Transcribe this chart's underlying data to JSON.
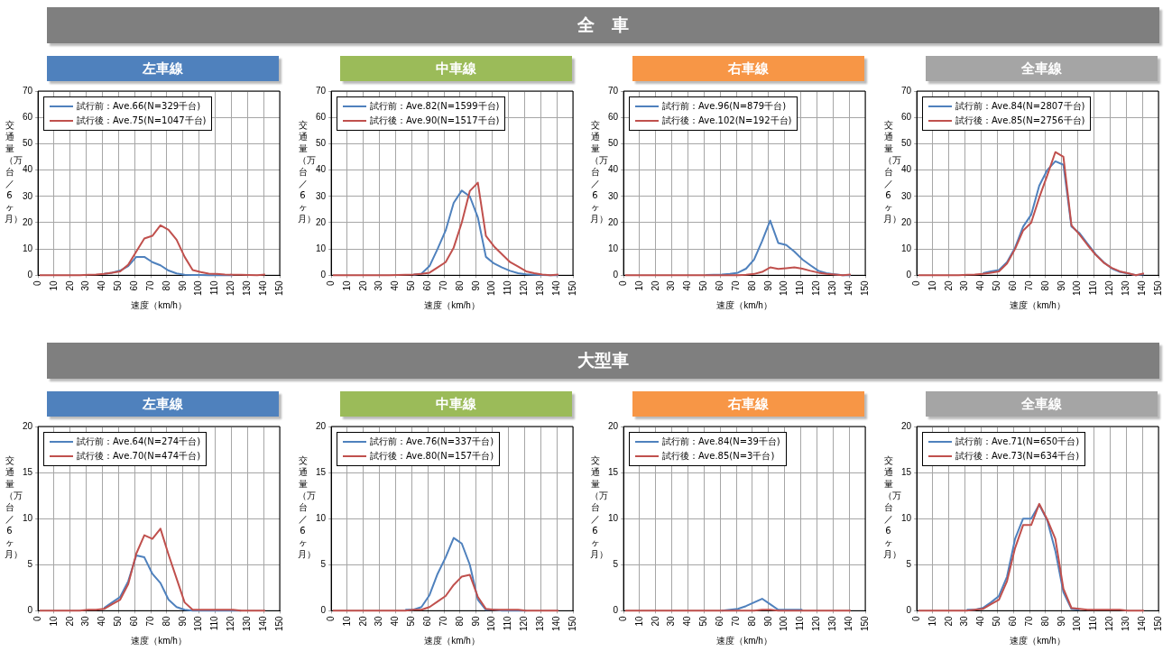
{
  "chart_data": [
    {
      "type": "other",
      "title": "全　車"
    },
    {
      "type": "line",
      "title": "左車線",
      "xlabel": "速度（km/h）",
      "ylabel": "交通量（万台／6ヶ月）",
      "legend": "top left",
      "grid": true,
      "marker": "none",
      "xlim": [
        0,
        150
      ],
      "xticks": [
        0,
        10,
        20,
        30,
        40,
        50,
        60,
        70,
        80,
        90,
        100,
        110,
        120,
        130,
        140,
        150
      ],
      "ylim": [
        0,
        70
      ],
      "yticks": [
        0,
        10,
        20,
        30,
        40,
        50,
        60,
        70
      ],
      "x": [
        1,
        6,
        11,
        16,
        21,
        26,
        31,
        36,
        41,
        46,
        51,
        56,
        61,
        66,
        71,
        76,
        81,
        86,
        91,
        96,
        101,
        106,
        111,
        116,
        121,
        126,
        131,
        136,
        141
      ],
      "series": [
        {
          "name": "試行前：Ave.66(N=329千台)",
          "color": "#4f81bd",
          "values": [
            null,
            null,
            null,
            null,
            null,
            null,
            null,
            null,
            0.5,
            1,
            1.8,
            3.5,
            7,
            7,
            5,
            3.8,
            1.8,
            0.7,
            0.2,
            0.1,
            0.1,
            0,
            0,
            0,
            0,
            null,
            null,
            null,
            null
          ]
        },
        {
          "name": "試行後：Ave.75(N=1047千台)",
          "color": "#c0504d",
          "values": [
            0,
            0,
            0,
            0,
            0,
            0,
            0.2,
            0.3,
            0.5,
            1,
            1.5,
            4,
            9,
            14,
            15,
            19,
            17.3,
            13.5,
            7,
            2,
            1.2,
            0.6,
            0.5,
            0.3,
            0.2,
            0.2,
            0.1,
            0,
            0.3
          ]
        }
      ]
    },
    {
      "type": "line",
      "title": "中車線",
      "xlabel": "速度（km/h）",
      "ylabel": "交通量（万台／6ヶ月）",
      "legend": "top left",
      "grid": true,
      "marker": "none",
      "xlim": [
        0,
        150
      ],
      "xticks": [
        0,
        10,
        20,
        30,
        40,
        50,
        60,
        70,
        80,
        90,
        100,
        110,
        120,
        130,
        140,
        150
      ],
      "ylim": [
        0,
        70
      ],
      "yticks": [
        0,
        10,
        20,
        30,
        40,
        50,
        60,
        70
      ],
      "x": [
        1,
        6,
        11,
        16,
        21,
        26,
        31,
        36,
        41,
        46,
        51,
        56,
        61,
        66,
        71,
        76,
        81,
        86,
        91,
        96,
        101,
        106,
        111,
        116,
        121,
        126,
        131,
        136,
        141
      ],
      "series": [
        {
          "name": "試行前：Ave.82(N=1599千台)",
          "color": "#4f81bd",
          "values": [
            null,
            null,
            null,
            null,
            null,
            null,
            null,
            null,
            null,
            null,
            0.2,
            0.6,
            3.5,
            10,
            17,
            27.5,
            32.2,
            30,
            22,
            7,
            4.5,
            3,
            1.7,
            0.8,
            0.4,
            0.2,
            0.1,
            0,
            0
          ]
        },
        {
          "name": "試行後：Ave.90(N=1517千台)",
          "color": "#c0504d",
          "values": [
            0,
            0,
            0,
            0,
            0,
            0,
            0,
            0,
            0.1,
            0.2,
            0.3,
            0.5,
            1,
            3,
            5,
            10.5,
            20,
            32,
            35.2,
            15,
            11,
            8,
            5,
            3.3,
            1.5,
            0.8,
            0.3,
            0,
            0.3
          ]
        }
      ]
    },
    {
      "type": "line",
      "title": "右車線",
      "xlabel": "速度（km/h）",
      "ylabel": "交通量（万台／6ヶ月）",
      "legend": "top left",
      "grid": true,
      "marker": "none",
      "xlim": [
        0,
        150
      ],
      "xticks": [
        0,
        10,
        20,
        30,
        40,
        50,
        60,
        70,
        80,
        90,
        100,
        110,
        120,
        130,
        140,
        150
      ],
      "ylim": [
        0,
        70
      ],
      "yticks": [
        0,
        10,
        20,
        30,
        40,
        50,
        60,
        70
      ],
      "x": [
        1,
        6,
        11,
        16,
        21,
        26,
        31,
        36,
        41,
        46,
        51,
        56,
        61,
        66,
        71,
        76,
        81,
        86,
        91,
        96,
        101,
        106,
        111,
        116,
        121,
        126,
        131,
        136,
        141
      ],
      "series": [
        {
          "name": "試行前：Ave.96(N=879千台)",
          "color": "#4f81bd",
          "values": [
            null,
            null,
            null,
            null,
            null,
            null,
            null,
            null,
            null,
            null,
            0.1,
            0.2,
            0.3,
            0.5,
            1,
            2.5,
            6,
            13,
            20.8,
            12.3,
            11.5,
            9,
            6,
            3.8,
            1.7,
            0.8,
            0.4,
            0,
            0
          ]
        },
        {
          "name": "試行後：Ave.102(N=192千台)",
          "color": "#c0504d",
          "values": [
            0,
            0,
            0,
            0,
            0,
            0,
            0,
            0,
            0,
            0,
            0,
            0,
            0,
            0,
            0,
            0.2,
            0.5,
            1.3,
            3,
            2.4,
            2.7,
            3,
            2.5,
            1.7,
            1,
            0.5,
            0.3,
            0,
            0.3
          ]
        }
      ]
    },
    {
      "type": "line",
      "title": "全車線",
      "xlabel": "速度（km/h）",
      "ylabel": "交通量（万台／6ヶ月）",
      "legend": "top left",
      "grid": true,
      "marker": "none",
      "xlim": [
        0,
        150
      ],
      "xticks": [
        0,
        10,
        20,
        30,
        40,
        50,
        60,
        70,
        80,
        90,
        100,
        110,
        120,
        130,
        140,
        150
      ],
      "ylim": [
        0,
        70
      ],
      "yticks": [
        0,
        10,
        20,
        30,
        40,
        50,
        60,
        70
      ],
      "x": [
        1,
        6,
        11,
        16,
        21,
        26,
        31,
        36,
        41,
        46,
        51,
        56,
        61,
        66,
        71,
        76,
        81,
        86,
        91,
        96,
        101,
        106,
        111,
        116,
        121,
        126,
        131,
        136,
        141
      ],
      "series": [
        {
          "name": "試行前：Ave.84(N=2807千台)",
          "color": "#4f81bd",
          "values": [
            null,
            null,
            null,
            null,
            null,
            null,
            null,
            null,
            0.8,
            1.5,
            2,
            5,
            10.5,
            18.5,
            23,
            34,
            40,
            43.3,
            42,
            18.5,
            16,
            12,
            8,
            5,
            2.6,
            1.3,
            0.7,
            0,
            0.4
          ]
        },
        {
          "name": "試行後：Ave.85(N=2756千台)",
          "color": "#c0504d",
          "values": [
            0,
            0,
            0,
            0,
            0,
            0,
            0.2,
            0.3,
            0.5,
            1,
            1.5,
            4.5,
            10,
            17,
            20,
            29.5,
            38,
            46.8,
            45,
            19,
            15.5,
            11.5,
            7.8,
            4.8,
            2.8,
            1.5,
            0.8,
            0,
            0.7
          ]
        }
      ]
    },
    {
      "type": "other",
      "title": "大型車"
    },
    {
      "type": "line",
      "title": "左車線",
      "xlabel": "速度（km/h）",
      "ylabel": "交通量（万台／6ヶ月）",
      "legend": "top left",
      "grid": true,
      "marker": "none",
      "xlim": [
        0,
        150
      ],
      "xticks": [
        0,
        10,
        20,
        30,
        40,
        50,
        60,
        70,
        80,
        90,
        100,
        110,
        120,
        130,
        140,
        150
      ],
      "ylim": [
        0,
        20
      ],
      "yticks": [
        0,
        5,
        10,
        15,
        20
      ],
      "x": [
        1,
        6,
        11,
        16,
        21,
        26,
        31,
        36,
        41,
        46,
        51,
        56,
        61,
        66,
        71,
        76,
        81,
        86,
        91,
        96,
        101,
        106,
        111,
        116,
        121,
        126,
        131,
        136,
        141
      ],
      "series": [
        {
          "name": "試行前：Ave.64(N=274千台)",
          "color": "#4f81bd",
          "values": [
            null,
            null,
            null,
            null,
            null,
            null,
            null,
            null,
            0.3,
            0.9,
            1.5,
            3.2,
            6,
            5.8,
            4,
            3,
            1.2,
            0.4,
            0.1,
            0,
            0,
            0,
            0,
            0,
            0,
            0,
            null,
            null,
            null
          ]
        },
        {
          "name": "試行後：Ave.70(N=474千台)",
          "color": "#c0504d",
          "values": [
            0,
            0,
            0,
            0,
            0,
            0,
            0.1,
            0.1,
            0.2,
            0.7,
            1.2,
            2.9,
            6.2,
            8.2,
            7.8,
            8.9,
            6.1,
            3.5,
            0.9,
            0.1,
            0.1,
            0.1,
            0.1,
            0.1,
            0.1,
            0,
            0,
            0,
            0
          ]
        }
      ]
    },
    {
      "type": "line",
      "title": "中車線",
      "xlabel": "速度（km/h）",
      "ylabel": "交通量（万台／6ヶ月）",
      "legend": "top left",
      "grid": true,
      "marker": "none",
      "xlim": [
        0,
        150
      ],
      "xticks": [
        0,
        10,
        20,
        30,
        40,
        50,
        60,
        70,
        80,
        90,
        100,
        110,
        120,
        130,
        140,
        150
      ],
      "ylim": [
        0,
        20
      ],
      "yticks": [
        0,
        5,
        10,
        15,
        20
      ],
      "x": [
        1,
        6,
        11,
        16,
        21,
        26,
        31,
        36,
        41,
        46,
        51,
        56,
        61,
        66,
        71,
        76,
        81,
        86,
        91,
        96,
        101,
        106,
        111,
        116,
        121,
        126,
        131,
        136,
        141
      ],
      "series": [
        {
          "name": "試行前：Ave.76(N=337千台)",
          "color": "#4f81bd",
          "values": [
            null,
            null,
            null,
            null,
            null,
            null,
            null,
            null,
            null,
            0.1,
            0.1,
            0.4,
            1.7,
            4,
            5.8,
            7.9,
            7.3,
            5,
            1.2,
            0.1,
            0.1,
            0,
            0,
            0,
            0,
            null,
            null,
            null,
            null
          ]
        },
        {
          "name": "試行後：Ave.80(N=157千台)",
          "color": "#c0504d",
          "values": [
            0,
            0,
            0,
            0,
            0,
            0,
            0,
            0,
            0,
            0,
            0.1,
            0.1,
            0.4,
            1,
            1.6,
            2.8,
            3.7,
            3.9,
            1.5,
            0.2,
            0.1,
            0.1,
            0.1,
            0.1,
            0,
            0,
            0,
            0,
            0
          ]
        }
      ]
    },
    {
      "type": "line",
      "title": "右車線",
      "xlabel": "速度（km/h）",
      "ylabel": "交通量（万台／6ヶ月）",
      "legend": "top left",
      "grid": true,
      "marker": "none",
      "xlim": [
        0,
        150
      ],
      "xticks": [
        0,
        10,
        20,
        30,
        40,
        50,
        60,
        70,
        80,
        90,
        100,
        110,
        120,
        130,
        140,
        150
      ],
      "ylim": [
        0,
        20
      ],
      "yticks": [
        0,
        5,
        10,
        15,
        20
      ],
      "x": [
        1,
        6,
        11,
        16,
        21,
        26,
        31,
        36,
        41,
        46,
        51,
        56,
        61,
        66,
        71,
        76,
        81,
        86,
        91,
        96,
        101,
        106,
        111,
        116,
        121,
        126,
        131,
        136,
        141
      ],
      "series": [
        {
          "name": "試行前：Ave.84(N=39千台)",
          "color": "#4f81bd",
          "values": [
            null,
            null,
            null,
            null,
            null,
            null,
            null,
            null,
            null,
            null,
            null,
            null,
            0,
            0.1,
            0.2,
            0.5,
            0.9,
            1.3,
            0.7,
            0.1,
            0.1,
            0.1,
            0.1,
            null,
            null,
            null,
            null,
            null,
            null
          ]
        },
        {
          "name": "試行後：Ave.85(N=3千台)",
          "color": "#c0504d",
          "values": [
            0,
            0,
            0,
            0,
            0,
            0,
            0,
            0,
            0,
            0,
            0,
            0,
            0,
            0,
            0,
            0,
            0,
            0.1,
            0.1,
            0,
            0,
            0,
            0,
            0,
            0,
            0,
            0,
            0,
            0
          ]
        }
      ]
    },
    {
      "type": "line",
      "title": "全車線",
      "xlabel": "速度（km/h）",
      "ylabel": "交通量（万台／6ヶ月）",
      "legend": "top left",
      "grid": true,
      "marker": "none",
      "xlim": [
        0,
        150
      ],
      "xticks": [
        0,
        10,
        20,
        30,
        40,
        50,
        60,
        70,
        80,
        90,
        100,
        110,
        120,
        130,
        140,
        150
      ],
      "ylim": [
        0,
        20
      ],
      "yticks": [
        0,
        5,
        10,
        15,
        20
      ],
      "x": [
        1,
        6,
        11,
        16,
        21,
        26,
        31,
        36,
        41,
        46,
        51,
        56,
        61,
        66,
        71,
        76,
        81,
        86,
        91,
        96,
        101,
        106,
        111,
        116,
        121,
        126,
        131,
        136,
        141
      ],
      "series": [
        {
          "name": "試行前：Ave.71(N=650千台)",
          "color": "#4f81bd",
          "values": [
            null,
            null,
            null,
            null,
            null,
            null,
            0.1,
            0.1,
            0.3,
            0.9,
            1.6,
            3.7,
            7.8,
            10,
            10,
            11.5,
            9.8,
            6.5,
            2,
            0.2,
            0.1,
            null,
            null,
            null,
            null,
            null,
            null,
            null,
            null
          ]
        },
        {
          "name": "試行後：Ave.73(N=634千台)",
          "color": "#c0504d",
          "values": [
            0,
            0,
            0,
            0,
            0,
            0,
            0,
            0.1,
            0.2,
            0.7,
            1.2,
            3.2,
            6.8,
            9.3,
            9.3,
            11.6,
            9.9,
            7.8,
            2.4,
            0.3,
            0.2,
            0.1,
            0.1,
            0.1,
            0.1,
            0.1,
            0,
            0,
            0
          ]
        }
      ]
    }
  ]
}
